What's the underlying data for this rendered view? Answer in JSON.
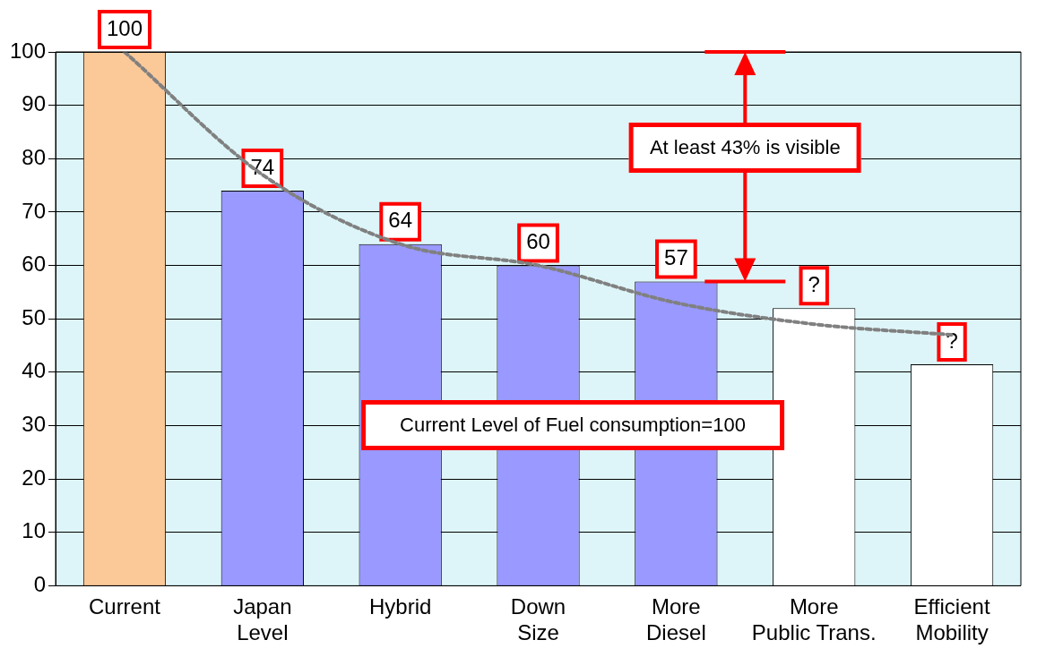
{
  "chart_data": {
    "type": "bar",
    "categories": [
      "Current",
      "Japan Level",
      "Hybrid",
      "Down Size",
      "More Diesel",
      "More Public Trans.",
      "Efficient Mobility"
    ],
    "series": [
      {
        "colors": [
          "#fbc898",
          "#9999ff",
          "#9999ff",
          "#9999ff",
          "#9999ff",
          "#ffffff",
          "#ffffff"
        ],
        "values": [
          100,
          74,
          64,
          60,
          57,
          52,
          41.5
        ],
        "value_labels": [
          "100",
          "74",
          "64",
          "60",
          "57",
          "?",
          "?"
        ]
      },
      {
        "type": "line",
        "color": "#808080",
        "values": [
          100,
          77,
          64,
          60,
          53,
          49,
          47
        ],
        "line_style": "dotted",
        "marker": "none"
      }
    ],
    "ylim": [
      0,
      100
    ],
    "yticks": [
      0,
      10,
      20,
      30,
      40,
      50,
      60,
      70,
      80,
      90,
      100
    ],
    "grid": "y",
    "ref_lines": [
      {
        "axis": "y",
        "value": 100,
        "color": "#ff0000"
      },
      {
        "axis": "y",
        "value": 57,
        "color": "#ff0000"
      }
    ],
    "annotations": [
      "At least 43% is visible",
      "Current Level of Fuel consumption=100"
    ]
  }
}
